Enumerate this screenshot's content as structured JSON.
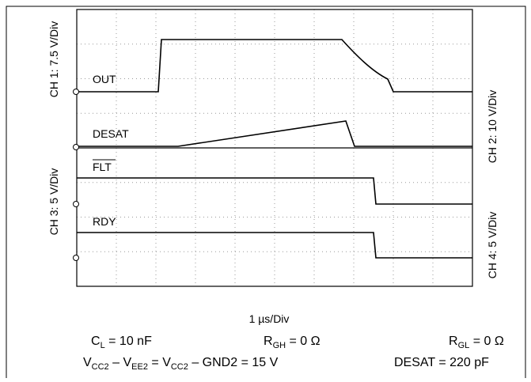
{
  "channels": {
    "ch1": "CH 1: 7.5 V/Div",
    "ch2": "CH 2: 10 V/Div",
    "ch3": "CH 3: 5 V/Div",
    "ch4": "CH 4: 5 V/Div"
  },
  "traces": {
    "out": "OUT",
    "desat": "DESAT",
    "flt": "FLT",
    "rdy": "RDY"
  },
  "timebase": "1 µs/Div",
  "conditions": {
    "cl": {
      "main": "C",
      "sub": "L",
      "rest": " = 10 nF"
    },
    "rgh": {
      "main": "R",
      "sub": "GH",
      "rest": " = 0 Ω"
    },
    "rgl": {
      "main": "R",
      "sub": "GL",
      "rest": " = 0 Ω"
    },
    "vcc": [
      "V",
      "CC2",
      " – V",
      "EE2",
      " = V",
      "CC2",
      " – GND2 = 15 V"
    ],
    "desat": "DESAT = 220 pF"
  }
}
